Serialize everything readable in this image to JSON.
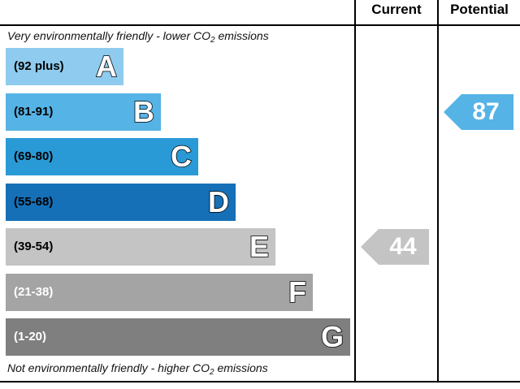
{
  "header": {
    "current_label": "Current",
    "potential_label": "Potential"
  },
  "notes": {
    "top_prefix": "Very environmentally friendly - lower C",
    "top_sub": "O",
    "top_sub_digit": "2",
    "top_suffix": " emissions",
    "bottom_prefix": "Not environmentally friendly - higher C",
    "bottom_sub": "O",
    "bottom_sub_digit": "2",
    "bottom_suffix": " emissions"
  },
  "chart_data": {
    "type": "bar",
    "bands": [
      {
        "letter": "A",
        "range": "(92 plus)",
        "color": "#8fcbee"
      },
      {
        "letter": "B",
        "range": "(81-91)",
        "color": "#55b3e6"
      },
      {
        "letter": "C",
        "range": "(69-80)",
        "color": "#2a9ad6"
      },
      {
        "letter": "D",
        "range": "(55-68)",
        "color": "#1570b8"
      },
      {
        "letter": "E",
        "range": "(39-54)",
        "color": "#c4c4c4"
      },
      {
        "letter": "F",
        "range": "(21-38)",
        "color": "#a4a4a4"
      },
      {
        "letter": "G",
        "range": "(1-20)",
        "color": "#7f7f7f"
      }
    ],
    "current": {
      "value": 44,
      "band": "E",
      "color": "#c4c4c4"
    },
    "potential": {
      "value": 87,
      "band": "B",
      "color": "#55b3e6"
    }
  }
}
